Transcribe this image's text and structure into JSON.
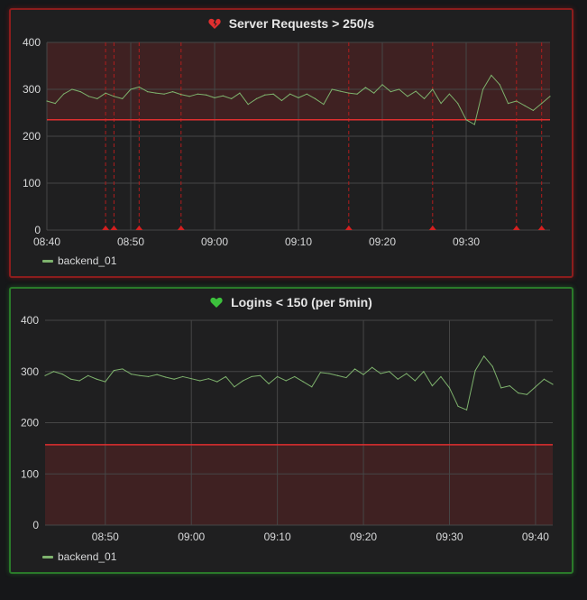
{
  "colors": {
    "series": "#7eb26d",
    "threshold": "#e02f2f",
    "alerting_border": "#8c1d1d",
    "ok_border": "#2a7a2a",
    "grid": "#464646"
  },
  "chart_data": [
    {
      "type": "line",
      "title": "Server Requests > 250/s",
      "status_icon": "broken-heart-icon",
      "threshold": 235,
      "threshold_region": "above",
      "ylim": [
        0,
        400
      ],
      "yticks": [
        "0",
        "100",
        "200",
        "300",
        "400"
      ],
      "xlim": [
        "08:40",
        "09:40"
      ],
      "xticks": [
        "08:40",
        "08:50",
        "09:00",
        "09:10",
        "09:20",
        "09:30"
      ],
      "grid": true,
      "legend": "bottom-left",
      "annotations": [
        "08:47",
        "08:48",
        "08:51",
        "08:56",
        "09:16",
        "09:26",
        "09:36",
        "09:39"
      ],
      "series": [
        {
          "name": "backend_01",
          "x": [
            "08:40",
            "08:41",
            "08:42",
            "08:43",
            "08:44",
            "08:45",
            "08:46",
            "08:47",
            "08:48",
            "08:49",
            "08:50",
            "08:51",
            "08:52",
            "08:53",
            "08:54",
            "08:55",
            "08:56",
            "08:57",
            "08:58",
            "08:59",
            "09:00",
            "09:01",
            "09:02",
            "09:03",
            "09:04",
            "09:05",
            "09:06",
            "09:07",
            "09:08",
            "09:09",
            "09:10",
            "09:11",
            "09:12",
            "09:13",
            "09:14",
            "09:15",
            "09:16",
            "09:17",
            "09:18",
            "09:19",
            "09:20",
            "09:21",
            "09:22",
            "09:23",
            "09:24",
            "09:25",
            "09:26",
            "09:27",
            "09:28",
            "09:29",
            "09:30",
            "09:31",
            "09:32",
            "09:33",
            "09:34",
            "09:35",
            "09:36",
            "09:37",
            "09:38",
            "09:39",
            "09:40"
          ],
          "values": [
            275,
            270,
            290,
            300,
            295,
            285,
            280,
            292,
            285,
            280,
            300,
            305,
            295,
            292,
            290,
            295,
            289,
            285,
            290,
            288,
            282,
            286,
            280,
            292,
            268,
            280,
            288,
            290,
            276,
            290,
            282,
            290,
            280,
            268,
            300,
            296,
            292,
            290,
            304,
            292,
            310,
            295,
            300,
            285,
            296,
            280,
            300,
            270,
            290,
            270,
            235,
            225,
            300,
            330,
            310,
            270,
            275,
            265,
            255,
            270,
            285
          ]
        }
      ]
    },
    {
      "type": "line",
      "title": "Logins < 150 (per 5min)",
      "status_icon": "green-heart-icon",
      "threshold": 157,
      "threshold_region": "below",
      "ylim": [
        0,
        400
      ],
      "yticks": [
        "0",
        "100",
        "200",
        "300",
        "400"
      ],
      "xlim": [
        "08:43",
        "09:42"
      ],
      "xticks": [
        "08:50",
        "09:00",
        "09:10",
        "09:20",
        "09:30",
        "09:40"
      ],
      "grid": true,
      "legend": "bottom-left",
      "series": [
        {
          "name": "backend_01",
          "x": [
            "08:43",
            "08:44",
            "08:45",
            "08:46",
            "08:47",
            "08:48",
            "08:49",
            "08:50",
            "08:51",
            "08:52",
            "08:53",
            "08:54",
            "08:55",
            "08:56",
            "08:57",
            "08:58",
            "08:59",
            "09:00",
            "09:01",
            "09:02",
            "09:03",
            "09:04",
            "09:05",
            "09:06",
            "09:07",
            "09:08",
            "09:09",
            "09:10",
            "09:11",
            "09:12",
            "09:13",
            "09:14",
            "09:15",
            "09:16",
            "09:17",
            "09:18",
            "09:19",
            "09:20",
            "09:21",
            "09:22",
            "09:23",
            "09:24",
            "09:25",
            "09:26",
            "09:27",
            "09:28",
            "09:29",
            "09:30",
            "09:31",
            "09:32",
            "09:33",
            "09:34",
            "09:35",
            "09:36",
            "09:37",
            "09:38",
            "09:39",
            "09:40",
            "09:41",
            "09:42"
          ],
          "values": [
            292,
            300,
            295,
            285,
            282,
            292,
            285,
            280,
            302,
            305,
            295,
            292,
            290,
            294,
            289,
            285,
            290,
            286,
            282,
            286,
            280,
            290,
            270,
            282,
            290,
            292,
            276,
            290,
            282,
            290,
            280,
            270,
            298,
            296,
            292,
            288,
            305,
            294,
            308,
            296,
            300,
            285,
            296,
            282,
            300,
            272,
            290,
            268,
            232,
            225,
            302,
            330,
            310,
            268,
            272,
            258,
            255,
            270,
            285,
            275
          ]
        }
      ]
    }
  ]
}
